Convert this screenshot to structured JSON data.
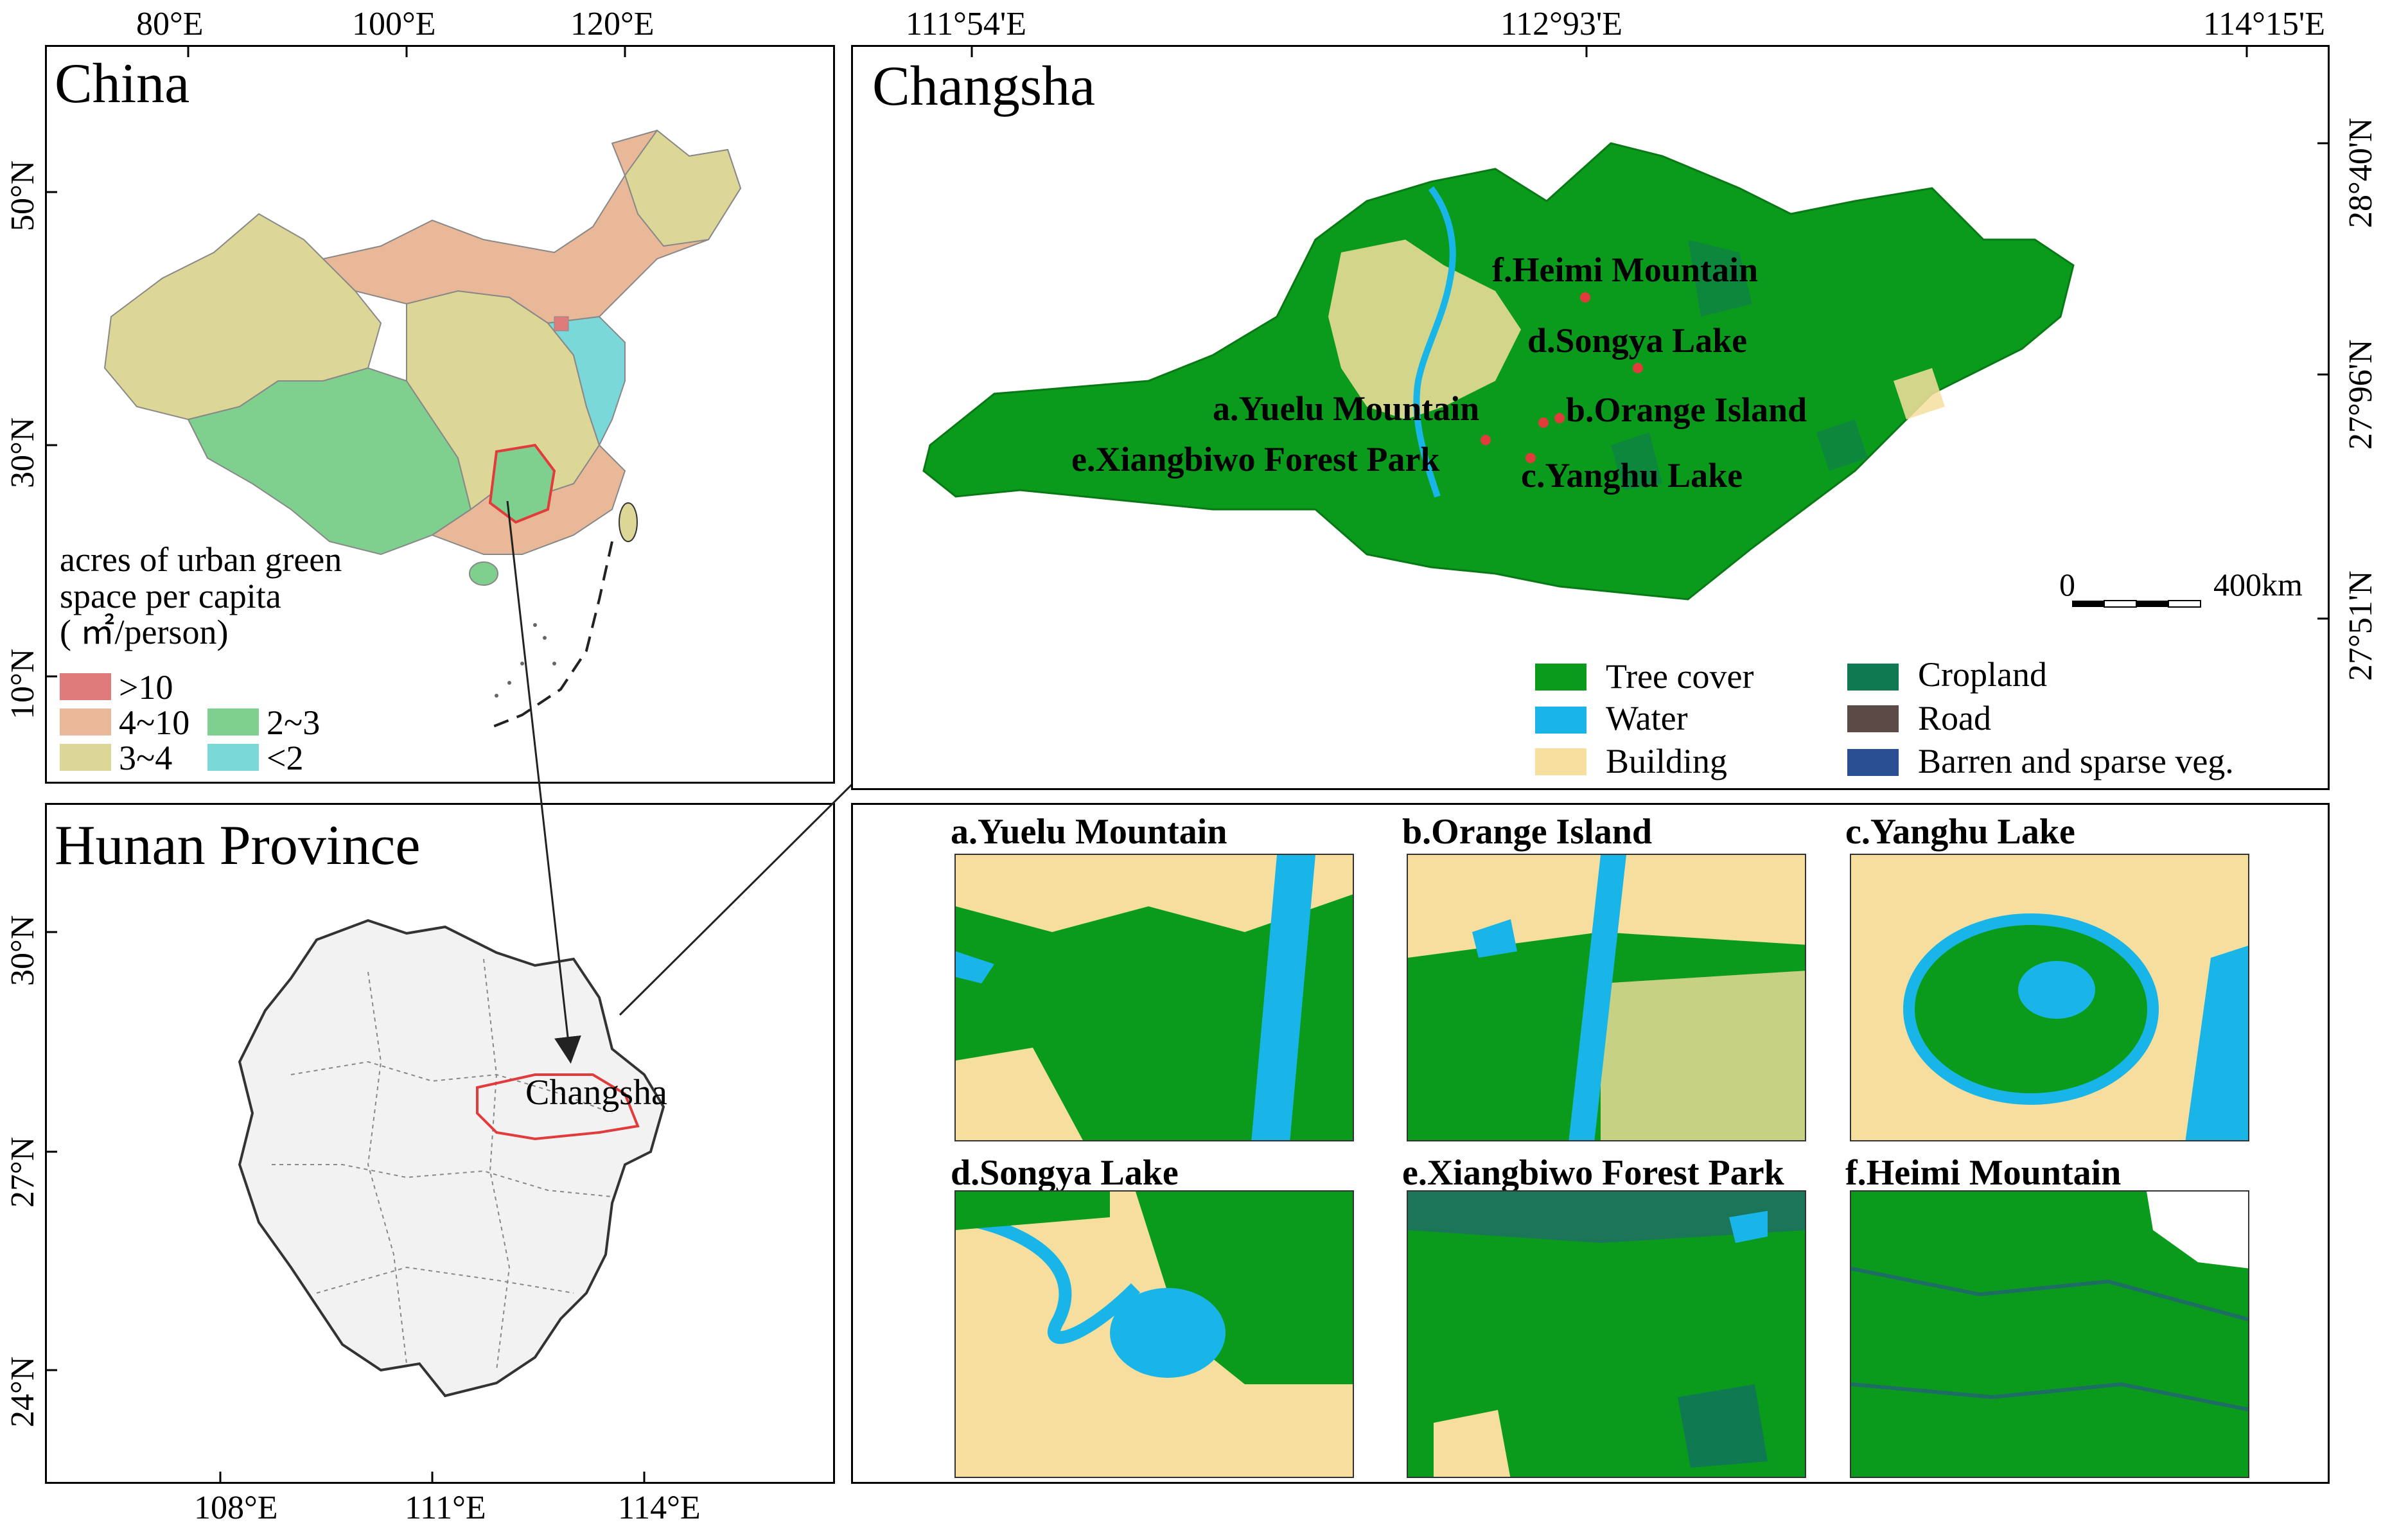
{
  "china_panel": {
    "title": "China",
    "x_ticks": [
      "80°E",
      "100°E",
      "120°E"
    ],
    "y_ticks": [
      "50°N",
      "30°N",
      "10°N"
    ],
    "legend_title": "acres of urban green space per capita (㎡/person)",
    "legend_title_lines": [
      "acres of urban green",
      "space per capita",
      "( ㎡/person)"
    ],
    "legend": [
      {
        "label": ">10",
        "color": "#e07b7b"
      },
      {
        "label": "4~10",
        "color": "#e8b898"
      },
      {
        "label": "3~4",
        "color": "#dcd797"
      },
      {
        "label": "2~3",
        "color": "#7fcf8f"
      },
      {
        "label": "<2",
        "color": "#7ad8d8"
      }
    ]
  },
  "hunan_panel": {
    "title": "Hunan Province",
    "x_ticks": [
      "108°E",
      "111°E",
      "114°E"
    ],
    "y_ticks": [
      "30°N",
      "27°N",
      "24°N"
    ],
    "city_label": "Changsha",
    "province_fill": "#f2f2f2",
    "city_outline": "#e23b3b"
  },
  "changsha_panel": {
    "title": "Changsha",
    "x_ticks": [
      "111°54'E",
      "112°93'E",
      "114°15'E"
    ],
    "y_ticks": [
      "28°40'N",
      "27°96'N",
      "27°51'N"
    ],
    "scale_start": "0",
    "scale_end": "400km",
    "sites": [
      {
        "label": "f.Heimi Mountain"
      },
      {
        "label": "d.Songya Lake"
      },
      {
        "label": "a.Yuelu Mountain"
      },
      {
        "label": "b.Orange Island"
      },
      {
        "label": "e.Xiangbiwo Forest Park"
      },
      {
        "label": "c.Yanghu Lake"
      }
    ],
    "legend": [
      {
        "label": "Tree cover",
        "color": "#0b9b1c"
      },
      {
        "label": "Water",
        "color": "#1ab5e8"
      },
      {
        "label": "Building",
        "color": "#f6df9e"
      },
      {
        "label": "Cropland",
        "color": "#0f7a52"
      },
      {
        "label": "Road",
        "color": "#5b4a45"
      },
      {
        "label": "Barren and sparse veg.",
        "color": "#2b4f93"
      }
    ]
  },
  "insets": [
    {
      "title": "a.Yuelu Mountain"
    },
    {
      "title": "b.Orange Island"
    },
    {
      "title": "c.Yanghu Lake"
    },
    {
      "title": "d.Songya Lake"
    },
    {
      "title": "e.Xiangbiwo Forest Park"
    },
    {
      "title": "f.Heimi Mountain"
    }
  ]
}
